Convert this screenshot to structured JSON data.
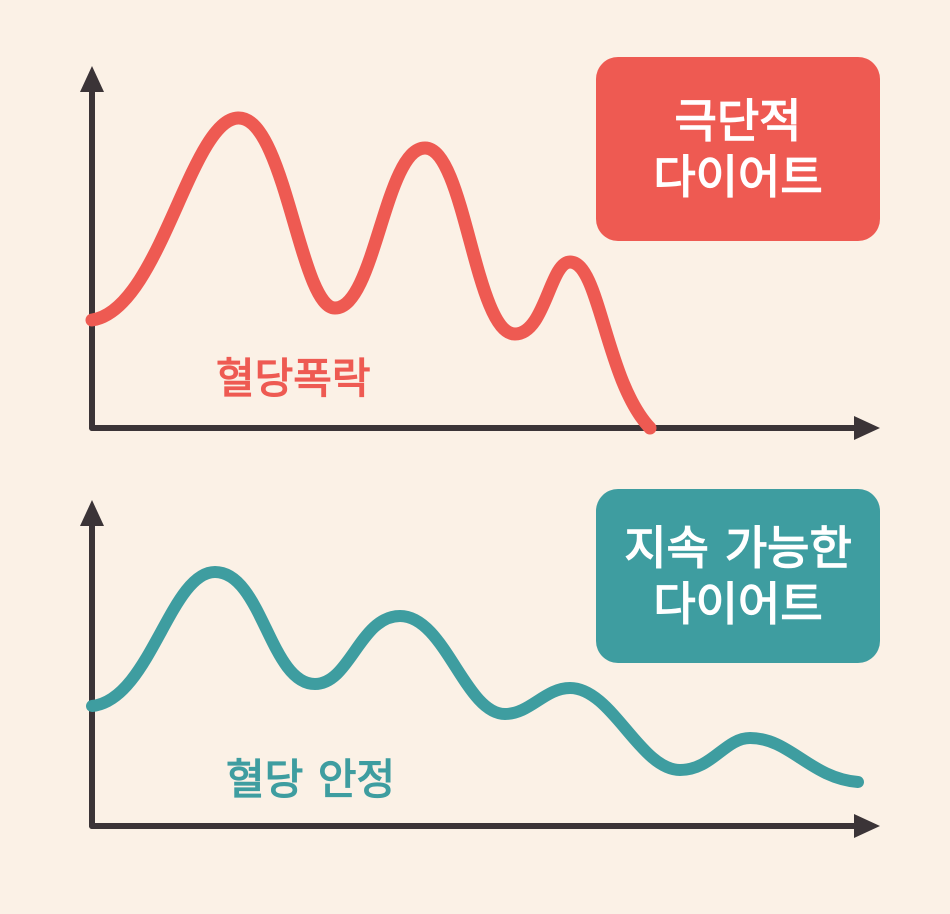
{
  "colors": {
    "background": "#FBF1E6",
    "axis": "#3B3437",
    "crash": "#EE5A52",
    "stable": "#3E9DA0"
  },
  "top_panel": {
    "badge_line1": "극단적",
    "badge_line2": "다이어트",
    "curve_label": "혈당폭락"
  },
  "bottom_panel": {
    "badge_line1": "지속 가능한",
    "badge_line2": "다이어트",
    "curve_label": "혈당 안정"
  },
  "chart_data": [
    {
      "type": "line",
      "curve_label": "혈당폭락",
      "shape": "sharp-peaks-falling-to-zero",
      "x": [
        0,
        1,
        2,
        3,
        4,
        5,
        6,
        7,
        8,
        9,
        10,
        11,
        12
      ],
      "values": [
        0.34,
        0.55,
        0.97,
        0.68,
        0.31,
        0.49,
        0.87,
        0.51,
        0.31,
        0.63,
        0.44,
        0.15,
        0.0
      ],
      "ylim": [
        0,
        1
      ]
    },
    {
      "type": "line",
      "curve_label": "혈당 안정",
      "shape": "damped-oscillation",
      "x": [
        0,
        1,
        2,
        3,
        4,
        5,
        6,
        7,
        8,
        9,
        10,
        11,
        12,
        13,
        14
      ],
      "values": [
        0.38,
        0.52,
        0.81,
        0.59,
        0.45,
        0.67,
        0.49,
        0.38,
        0.45,
        0.36,
        0.23,
        0.29,
        0.18,
        0.1,
        0.07
      ],
      "ylim": [
        0,
        1
      ]
    }
  ]
}
